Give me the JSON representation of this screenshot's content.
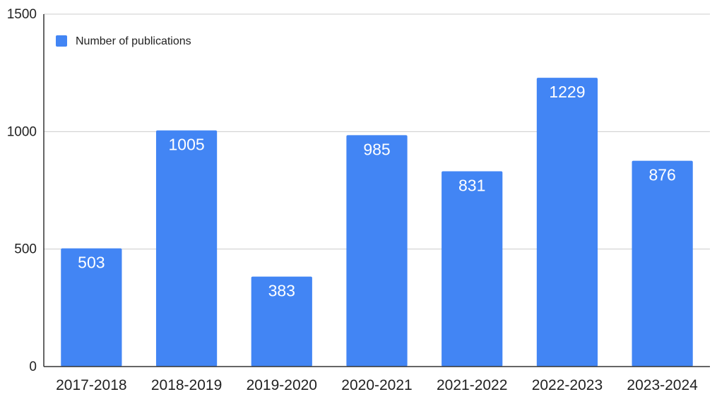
{
  "chart_data": {
    "type": "bar",
    "categories": [
      "2017-2018",
      "2018-2019",
      "2019-2020",
      "2020-2021",
      "2021-2022",
      "2022-2023",
      "2023-2024"
    ],
    "series": [
      {
        "name": "Number of publications",
        "values": [
          503,
          1005,
          383,
          985,
          831,
          1229,
          876
        ]
      }
    ],
    "data_labels": [
      "503",
      "1005",
      "383",
      "985",
      "831",
      "1229",
      "876"
    ],
    "y_ticks": [
      "0",
      "500",
      "1000",
      "1500"
    ],
    "ylim": [
      0,
      1500
    ],
    "grid": true,
    "legend_position": "top-left",
    "colors": {
      "bar": "#4285f4",
      "grid": "#cccccc",
      "axis": "#333333"
    }
  }
}
